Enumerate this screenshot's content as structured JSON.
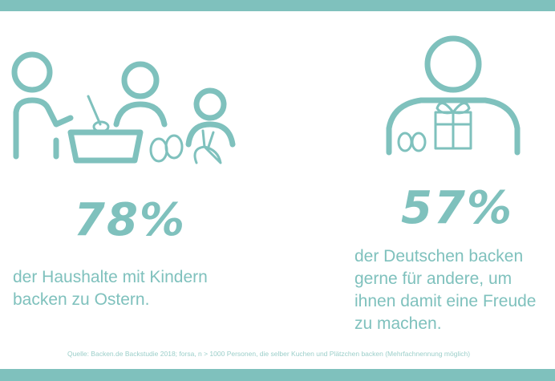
{
  "accent_color": "#7fc1bd",
  "left": {
    "icon": "family-baking-easter-icon",
    "percent": "78%",
    "text_line1": "der Haushalte mit Kindern",
    "text_line2": "backen zu Ostern."
  },
  "right": {
    "icon": "person-gift-icon",
    "percent": "57%",
    "text_line1": "der Deutschen backen",
    "text_line2": "gerne für andere, um",
    "text_line3": "ihnen damit eine Freude",
    "text_line4": "zu machen."
  },
  "source": "Quelle: Backen.de Backstudie 2018; forsa, n > 1000 Personen, die selber Kuchen und Plätzchen backen (Mehrfachnennung möglich)"
}
